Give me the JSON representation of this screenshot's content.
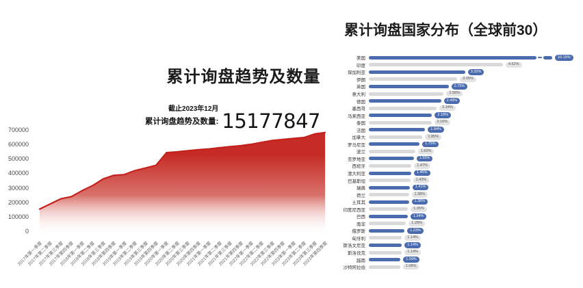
{
  "chart_data": [
    {
      "type": "area",
      "title": "累计询盘趋势及数量",
      "annotation": {
        "as_of": "截止2023年12月",
        "total_label": "累计询盘趋势及数量:",
        "total_value": "15177847"
      },
      "x": [
        "2017年第一季度",
        "2017年第二季度",
        "2017年第三季度",
        "2017年第四季度",
        "2018年第一季度",
        "2018年第二季度",
        "2018年第三季度",
        "2018年第四季度",
        "2019年第一季度",
        "2019年第二季度",
        "2019年第三季度",
        "2019年第四季度",
        "2020年第一季度",
        "2020年第二季度",
        "2020年第三季度",
        "2020年第四季度",
        "2021年第一季度",
        "2021年第二季度",
        "2021年第三季度",
        "2021年第四季度",
        "2022年第一季度",
        "2022年第二季度",
        "2022年第三季度",
        "2022年第四季度",
        "2023年第一季度",
        "2023年第二季度",
        "2023年第三季度",
        "2023年第四季度"
      ],
      "values": [
        170000,
        205000,
        240000,
        255000,
        295000,
        330000,
        375000,
        400000,
        405000,
        432000,
        450000,
        468000,
        555000,
        560000,
        568000,
        575000,
        580000,
        588000,
        596000,
        602000,
        612000,
        625000,
        638000,
        645000,
        652000,
        658000,
        682000,
        692000
      ],
      "y_ticks": [
        "700000",
        "600000",
        "500000",
        "400000",
        "300000",
        "200000",
        "100000",
        "0"
      ],
      "ylim": [
        0,
        700000
      ],
      "grid": false,
      "colors": {
        "line": "#c5211c",
        "fill_top": "#c62b25",
        "fill_bottom": "#ffffff"
      }
    },
    {
      "type": "bar",
      "orientation": "horizontal",
      "title": "累计询盘国家分布（全球前30）",
      "categories": [
        "美国",
        "印度",
        "保加利亚",
        "伊朗",
        "英国",
        "意大利",
        "德国",
        "墨西哥",
        "马来西亚",
        "泰国",
        "法国",
        "加拿大",
        "罗马尼亚",
        "波兰",
        "克罗地亚",
        "西班牙",
        "澳大利亚",
        "巴基斯坦",
        "瑞典",
        "荷兰",
        "土耳其",
        "印度尼西亚",
        "巴西",
        "南非",
        "俄罗斯",
        "匈牙利",
        "斯洛文尼亚",
        "斯洛伐克",
        "越南",
        "沙特阿拉伯"
      ],
      "values": [
        10.16,
        4.62,
        3.32,
        3.05,
        2.75,
        2.58,
        2.49,
        2.34,
        2.18,
        2.16,
        1.94,
        1.85,
        1.75,
        1.6,
        1.55,
        1.47,
        1.46,
        1.43,
        1.41,
        1.38,
        1.38,
        1.35,
        1.34,
        1.28,
        1.23,
        1.14,
        1.14,
        1.14,
        1.09,
        1.08
      ],
      "value_labels": [
        "10.16%",
        "4.62%",
        "3.32%",
        "3.05%",
        "2.75%",
        "2.58%",
        "2.49%",
        "2.34%",
        "2.18%",
        "2.16%",
        "1.94%",
        "1.85%",
        "1.75%",
        "1.60%",
        "1.55%",
        "1.47%",
        "1.46%",
        "1.43%",
        "1.41%",
        "1.38%",
        "1.38%",
        "1.35%",
        "1.34%",
        "1.28%",
        "1.23%",
        "1.14%",
        "1.14%",
        "1.14%",
        "1.09%",
        "1.08%"
      ],
      "axis_break_row": 0,
      "legend": false,
      "colors": {
        "bar_blue": "#4a6cae",
        "bar_gray": "#d9d9d9",
        "badge_blue_bg": "#4a6cae",
        "badge_blue_text": "#ffffff",
        "badge_gray_bg": "#e3e3e3",
        "badge_gray_text": "#555555"
      }
    }
  ]
}
